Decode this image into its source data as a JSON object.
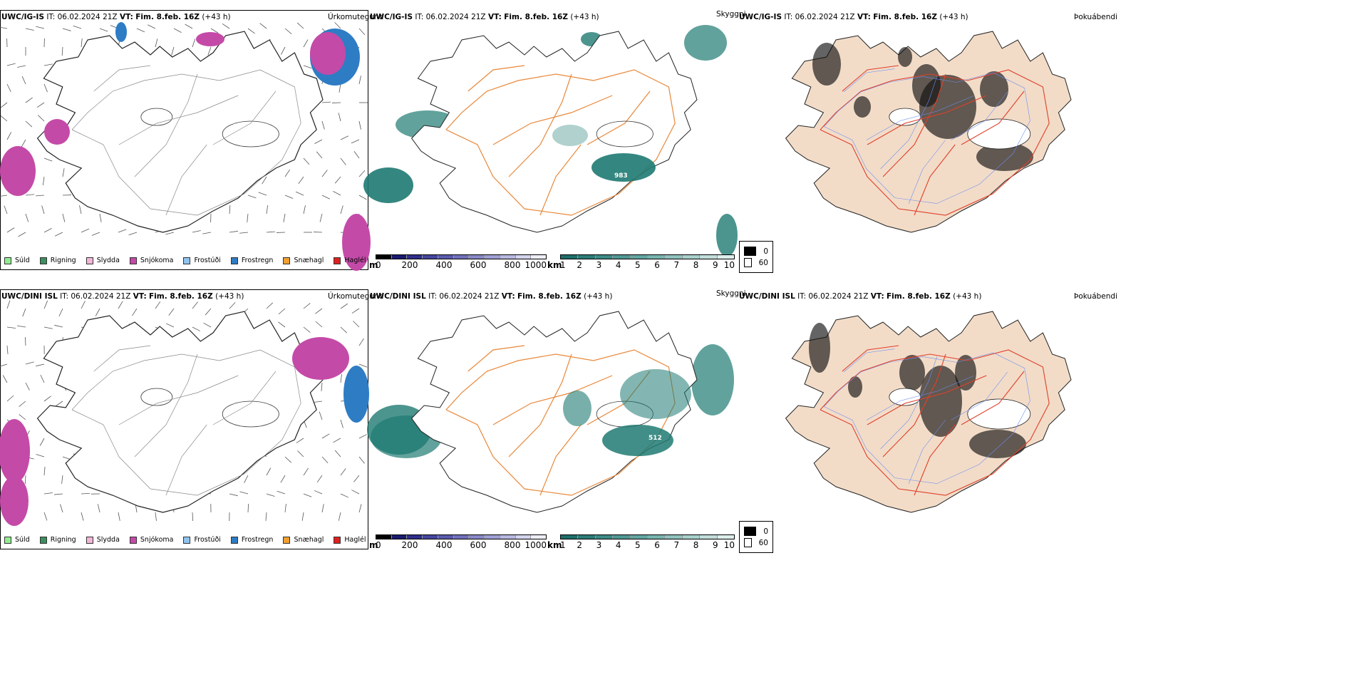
{
  "rows": [
    {
      "model": "UWC/IG-IS",
      "it_label": "IT:",
      "it_value": "06.02.2024 21Z",
      "vt_label": "VT:",
      "vt_value": "Fim. 8.feb. 16Z",
      "lead": "(+43 h)",
      "map_value_label": "983"
    },
    {
      "model": "UWC/DINI ISL",
      "it_label": "IT:",
      "it_value": "06.02.2024 21Z",
      "vt_label": "VT:",
      "vt_value": "Fim. 8.feb. 16Z",
      "lead": "(+43 h)",
      "map_value_label": "512"
    }
  ],
  "panel_titles": {
    "precip": "Úrkomutegund",
    "visibility": "Skyggni",
    "fog": "Þokuábendi"
  },
  "precip_legend": [
    {
      "label": "Súld",
      "color": "#90ee90"
    },
    {
      "label": "Rigning",
      "color": "#3c8f5e"
    },
    {
      "label": "Slydda",
      "color": "#f4b6d8"
    },
    {
      "label": "Snjókoma",
      "color": "#c44aa8"
    },
    {
      "label": "Frostúði",
      "color": "#8fc4f0"
    },
    {
      "label": "Frostregn",
      "color": "#2e7cc4"
    },
    {
      "label": "Snæhagl",
      "color": "#f0a030"
    },
    {
      "label": "Haglél",
      "color": "#e02020"
    }
  ],
  "height_scale": {
    "unit": "m",
    "ticks": [
      "0",
      "200",
      "400",
      "600",
      "800",
      "1000"
    ],
    "colors": [
      "#000000",
      "#1a1a6e",
      "#2e2e8a",
      "#4545a0",
      "#5a5aae",
      "#7070bc",
      "#8888c8",
      "#a0a0d4",
      "#b8b8e0",
      "#d4d4ee",
      "#eeeefa"
    ]
  },
  "visibility_scale": {
    "unit": "km",
    "ticks": [
      "1",
      "2",
      "3",
      "4",
      "5",
      "6",
      "7",
      "8",
      "9",
      "10"
    ],
    "colors": [
      "#1e6e6a",
      "#2c7c78",
      "#3c8a86",
      "#4e9894",
      "#62a6a2",
      "#78b4b0",
      "#90c2be",
      "#a8d0cc",
      "#c2dedb",
      "#dceeec"
    ]
  },
  "fog_legend": [
    {
      "label": "0",
      "color": "#000000"
    },
    {
      "label": "60",
      "color": "#ffffff"
    }
  ],
  "colors": {
    "snow": "#c44aa8",
    "freezing_rain": "#2e7cc4",
    "visibility_teal": "#1e7a72",
    "roads_orange": "#e8883a",
    "fog_land": "#f2dcc8",
    "fog_roads": "#e0402a",
    "rivers": "#6f8ef0"
  }
}
